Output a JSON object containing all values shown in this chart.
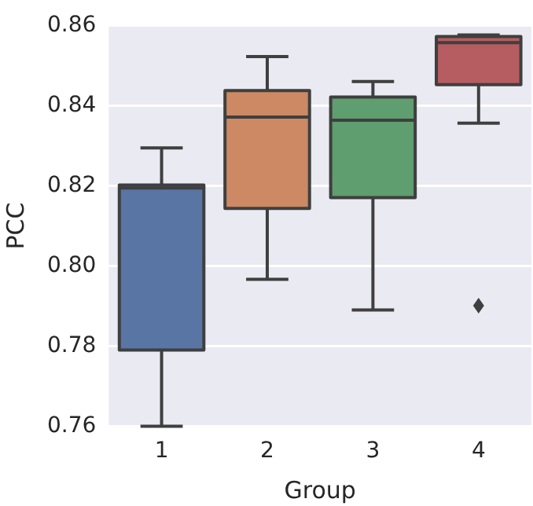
{
  "chart_data": {
    "type": "box",
    "xlabel": "Group",
    "ylabel": "PCC",
    "categories": [
      "1",
      "2",
      "3",
      "4"
    ],
    "colors": [
      "#5975a4",
      "#cc8963",
      "#5f9e6e",
      "#b55d60"
    ],
    "boxes": [
      {
        "low": 0.76,
        "q1": 0.779,
        "median": 0.8195,
        "q3": 0.8202,
        "high": 0.8295
      },
      {
        "low": 0.7967,
        "q1": 0.8144,
        "median": 0.8372,
        "q3": 0.8438,
        "high": 0.8523
      },
      {
        "low": 0.789,
        "q1": 0.8171,
        "median": 0.8364,
        "q3": 0.8422,
        "high": 0.8461
      },
      {
        "low": 0.8357,
        "q1": 0.8453,
        "median": 0.8558,
        "q3": 0.8573,
        "high": 0.8577,
        "outliers": [
          0.7901
        ]
      }
    ],
    "ylim": [
      0.76,
      0.86
    ],
    "yticks": [
      0.76,
      0.78,
      {
        "value": 0.8,
        "label": "0.80"
      },
      0.82,
      0.84,
      0.86
    ],
    "grid": "y",
    "marker": "diamond"
  }
}
